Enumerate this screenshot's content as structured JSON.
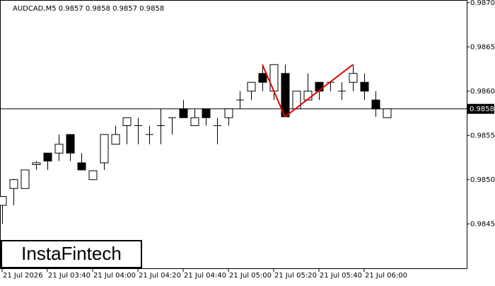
{
  "chart_data": {
    "type": "candlestick",
    "title": "AUDCAD,M5  0.9857 0.9858 0.9857 0.9858",
    "brand": "InstaFintech",
    "categories": [
      "21 Jul 2026",
      null,
      null,
      null,
      "21 Jul 03:40",
      null,
      null,
      null,
      "21 Jul 04:00",
      null,
      null,
      null,
      "21 Jul 04:20",
      null,
      null,
      null,
      "21 Jul 04:40",
      null,
      null,
      null,
      "21 Jul 05:00",
      null,
      null,
      null,
      "21 Jul 05:20",
      null,
      null,
      null,
      "21 Jul 05:40",
      null,
      null,
      null,
      "21 Jul 06:00",
      null,
      null
    ],
    "open": [
      0.98471,
      0.9849,
      0.9849,
      0.98517,
      0.9853,
      0.9853,
      0.98551,
      0.98519,
      0.985,
      0.98519,
      0.9854,
      0.98561,
      0.98561,
      0.98551,
      0.98561,
      0.9857,
      0.9858,
      0.98561,
      0.9858,
      0.98561,
      0.9857,
      0.9859,
      0.986,
      0.9862,
      0.986,
      0.9862,
      0.9858,
      0.9859,
      0.9861,
      0.9861,
      0.986,
      0.9861,
      0.9861,
      0.9859,
      0.9857
    ],
    "high": [
      0.98481,
      0.98501,
      0.98511,
      0.98521,
      0.9853,
      0.98551,
      0.98551,
      0.9853,
      0.9851,
      0.98551,
      0.98561,
      0.9857,
      0.9857,
      0.98561,
      0.9858,
      0.9857,
      0.9859,
      0.9858,
      0.9858,
      0.9857,
      0.9858,
      0.986,
      0.9861,
      0.9863,
      0.9863,
      0.9863,
      0.986,
      0.9862,
      0.9861,
      0.9861,
      0.9861,
      0.9863,
      0.9862,
      0.986,
      0.9858
    ],
    "low": [
      0.9845,
      0.98471,
      0.9849,
      0.98511,
      0.98511,
      0.98521,
      0.98521,
      0.98511,
      0.985,
      0.98511,
      0.9854,
      0.9854,
      0.9854,
      0.9854,
      0.9854,
      0.98551,
      0.9857,
      0.98561,
      0.98561,
      0.9854,
      0.98561,
      0.9858,
      0.9859,
      0.986,
      0.9859,
      0.98571,
      0.9858,
      0.9859,
      0.9859,
      0.986,
      0.9859,
      0.986,
      0.9859,
      0.98571,
      0.9857
    ],
    "close": [
      0.98481,
      0.985,
      0.98511,
      0.98519,
      0.98521,
      0.9854,
      0.9853,
      0.98511,
      0.9851,
      0.98551,
      0.98551,
      0.9857,
      0.98561,
      0.98551,
      0.98561,
      0.9857,
      0.9857,
      0.9857,
      0.9857,
      0.98561,
      0.9858,
      0.9859,
      0.9861,
      0.9861,
      0.9863,
      0.98571,
      0.986,
      0.986,
      0.986,
      0.9861,
      0.986,
      0.9862,
      0.986,
      0.9858,
      0.9858
    ],
    "up_color": "#ffffff",
    "down_color": "#000000",
    "last_price": 0.9858,
    "pattern": {
      "color": "#e00000",
      "points": [
        {
          "x": 23,
          "y": 0.9863
        },
        {
          "x": 25,
          "y": 0.98571
        },
        {
          "x": 31,
          "y": 0.9863
        }
      ]
    },
    "ylim": [
      0.98399,
      0.98703
    ],
    "yticks": [
      {
        "value": 0.987,
        "label": "0.9870"
      },
      0.9865,
      {
        "value": 0.986,
        "label": "0.9860"
      },
      0.9855,
      {
        "value": 0.985,
        "label": "0.9850"
      },
      0.9845
    ]
  }
}
